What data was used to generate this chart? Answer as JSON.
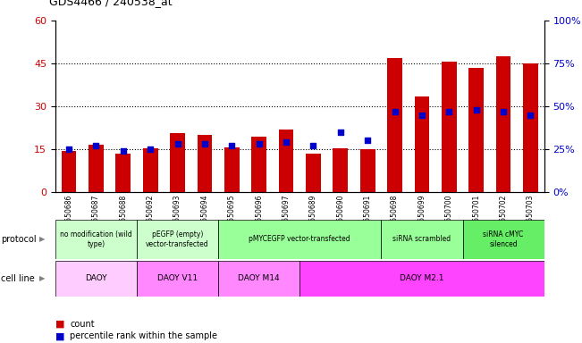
{
  "title": "GDS4466 / 240538_at",
  "samples": [
    "GSM550686",
    "GSM550687",
    "GSM550688",
    "GSM550692",
    "GSM550693",
    "GSM550694",
    "GSM550695",
    "GSM550696",
    "GSM550697",
    "GSM550689",
    "GSM550690",
    "GSM550691",
    "GSM550698",
    "GSM550699",
    "GSM550700",
    "GSM550701",
    "GSM550702",
    "GSM550703"
  ],
  "counts": [
    14.5,
    16.5,
    13.5,
    15.2,
    20.5,
    20.0,
    15.5,
    19.5,
    22.0,
    13.5,
    15.2,
    15.0,
    47.0,
    33.5,
    45.5,
    43.5,
    47.5,
    45.0
  ],
  "percentiles": [
    25,
    27,
    24,
    25,
    28,
    28,
    27,
    28,
    29,
    27,
    35,
    30,
    47,
    45,
    47,
    48,
    47,
    45
  ],
  "ylim_left": [
    0,
    60
  ],
  "ylim_right": [
    0,
    100
  ],
  "yticks_left": [
    0,
    15,
    30,
    45,
    60
  ],
  "yticks_right": [
    0,
    25,
    50,
    75,
    100
  ],
  "protocol_groups": [
    {
      "label": "no modification (wild\ntype)",
      "start": 0,
      "end": 3,
      "color": "#ccffcc"
    },
    {
      "label": "pEGFP (empty)\nvector-transfected",
      "start": 3,
      "end": 6,
      "color": "#ccffcc"
    },
    {
      "label": "pMYCEGFP vector-transfected",
      "start": 6,
      "end": 12,
      "color": "#99ff99"
    },
    {
      "label": "siRNA scrambled",
      "start": 12,
      "end": 15,
      "color": "#99ff99"
    },
    {
      "label": "siRNA cMYC\nsilenced",
      "start": 15,
      "end": 18,
      "color": "#66ee66"
    }
  ],
  "cellline_groups": [
    {
      "label": "DAOY",
      "start": 0,
      "end": 3,
      "color": "#ffccff"
    },
    {
      "label": "DAOY V11",
      "start": 3,
      "end": 6,
      "color": "#ff88ff"
    },
    {
      "label": "DAOY M14",
      "start": 6,
      "end": 9,
      "color": "#ff88ff"
    },
    {
      "label": "DAOY M2.1",
      "start": 9,
      "end": 18,
      "color": "#ff44ff"
    }
  ],
  "bar_color": "#cc0000",
  "dot_color": "#0000cc",
  "tick_color_left": "#cc0000",
  "tick_color_right": "#0000cc",
  "legend_items": [
    {
      "label": "count",
      "color": "#cc0000",
      "marker": "s"
    },
    {
      "label": "percentile rank within the sample",
      "color": "#0000cc",
      "marker": "s"
    }
  ]
}
